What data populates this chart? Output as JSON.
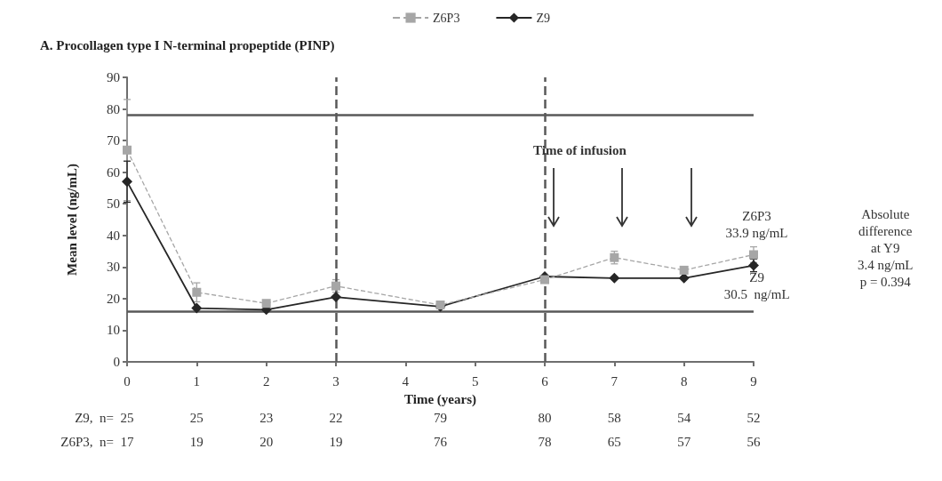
{
  "chart_data": {
    "type": "line",
    "title": "A. Procollagen type I N-terminal propeptide (PINP)",
    "xlabel": "Time (years)",
    "ylabel": "Mean level (ng/mL)",
    "x": [
      0,
      1,
      2,
      3,
      4.5,
      6,
      7,
      8,
      9
    ],
    "series": [
      {
        "name": "Z6P3",
        "color": "#a6a6a6",
        "marker": "square",
        "line_style": "dashed",
        "values": [
          67,
          22,
          18.5,
          24,
          18,
          26,
          33,
          29,
          33.9
        ],
        "errors": [
          16,
          3,
          null,
          2,
          null,
          null,
          2,
          null,
          2.5
        ]
      },
      {
        "name": "Z9",
        "color": "#262626",
        "marker": "diamond",
        "line_style": "solid",
        "values": [
          57,
          17,
          16.5,
          20.5,
          17.5,
          27,
          26.5,
          26.5,
          30.5
        ],
        "errors": [
          6.5,
          null,
          null,
          null,
          null,
          null,
          null,
          null,
          2
        ]
      }
    ],
    "xlim": [
      0,
      9
    ],
    "xticks": [
      0,
      1,
      2,
      3,
      4,
      5,
      6,
      7,
      8,
      9
    ],
    "ylim": [
      0,
      90
    ],
    "yticks": [
      0,
      10,
      20,
      30,
      40,
      50,
      60,
      70,
      80,
      90
    ],
    "ref_lines": [
      {
        "axis": "y",
        "value": 78,
        "color": "#595959",
        "line_style": "solid"
      },
      {
        "axis": "y",
        "value": 16,
        "color": "#595959",
        "line_style": "solid"
      },
      {
        "axis": "x",
        "value": 3,
        "color": "#595959",
        "line_style": "dashed"
      },
      {
        "axis": "x",
        "value": 6,
        "color": "#595959",
        "line_style": "dashed"
      }
    ],
    "annotations": [
      "Time of infusion",
      {
        "text": "Z6P3\n33.9 ng/mL",
        "x": 9,
        "y": 33.9
      },
      {
        "text": "Z9\n30.5  ng/mL",
        "x": 9,
        "y": 30.5
      },
      "Absolute\ndifference\nat Y9\n3.4 ng/mL\np = 0.394",
      "Z9,  n= 25 25 23 22 79 80 58 54 52",
      "Z6P3,  n= 17 19 20 19 76 78 65 57 56"
    ],
    "legend": "top",
    "grid": false
  }
}
